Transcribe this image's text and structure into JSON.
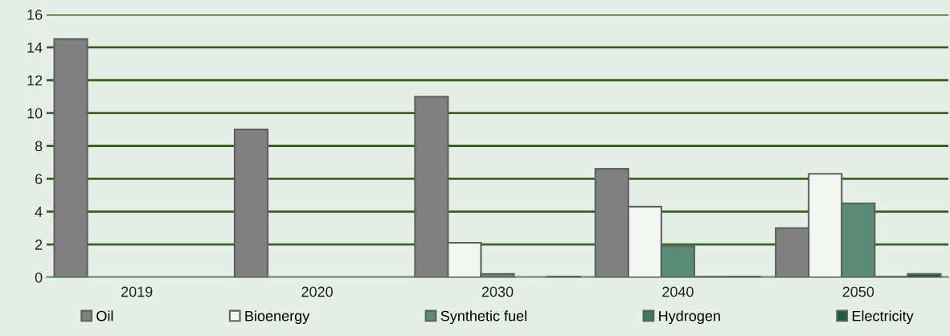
{
  "chart_data": {
    "type": "bar",
    "categories": [
      "2019",
      "2020",
      "2030",
      "2040",
      "2050"
    ],
    "series": [
      {
        "name": "Oil",
        "color": "#808080",
        "values": [
          14.5,
          9.0,
          11.0,
          6.6,
          3.0
        ]
      },
      {
        "name": "Bioenergy",
        "color": "#f2f7f2",
        "values": [
          null,
          null,
          2.1,
          4.3,
          6.3
        ]
      },
      {
        "name": "Synthetic fuel",
        "color": "#5a8b76",
        "values": [
          null,
          null,
          0.2,
          1.9,
          4.5
        ]
      },
      {
        "name": "Hydrogen",
        "color": "#3f7a62",
        "values": [
          null,
          null,
          null,
          0.02,
          0.02
        ]
      },
      {
        "name": "Electricity",
        "color": "#1e5a3c",
        "values": [
          null,
          null,
          0.05,
          0.05,
          0.2
        ]
      }
    ],
    "ylim": [
      0,
      16
    ],
    "yticks": [
      0,
      2,
      4,
      6,
      8,
      10,
      12,
      14,
      16
    ],
    "grid": "y",
    "legend": "bottom"
  }
}
